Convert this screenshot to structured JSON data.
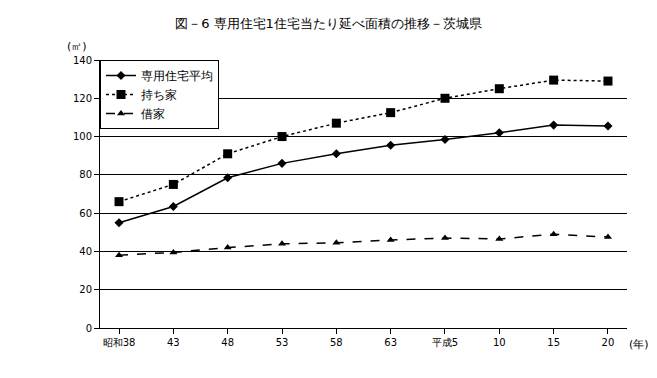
{
  "chart_data": {
    "type": "line",
    "title": "図－6 専用住宅1住宅当たり延べ面積の推移－茨城県",
    "ylabel": "(㎡)",
    "xlabel": "(年)",
    "categories": [
      "昭和38",
      "43",
      "48",
      "53",
      "58",
      "63",
      "平成5",
      "10",
      "15",
      "20"
    ],
    "series": [
      {
        "name": "専用住宅平均",
        "color": "#000000",
        "marker": "diamond",
        "line_style": "solid",
        "values": [
          55,
          63.5,
          78.5,
          86,
          91,
          95.5,
          98.5,
          102,
          106,
          105.5
        ]
      },
      {
        "name": "持ち家",
        "color": "#000000",
        "marker": "square",
        "line_style": "dot",
        "values": [
          66,
          75,
          91,
          100,
          107,
          112.5,
          120,
          125,
          129.5,
          129
        ]
      },
      {
        "name": "借家",
        "color": "#000000",
        "marker": "triangle",
        "line_style": "dash",
        "values": [
          38,
          39.5,
          42,
          44,
          44.5,
          46,
          47,
          46.5,
          49,
          47.5
        ]
      }
    ],
    "ylim": [
      0,
      140
    ],
    "yticks": [
      0,
      20,
      40,
      60,
      80,
      100,
      120,
      140
    ],
    "grid": true,
    "legend": "upper left"
  }
}
